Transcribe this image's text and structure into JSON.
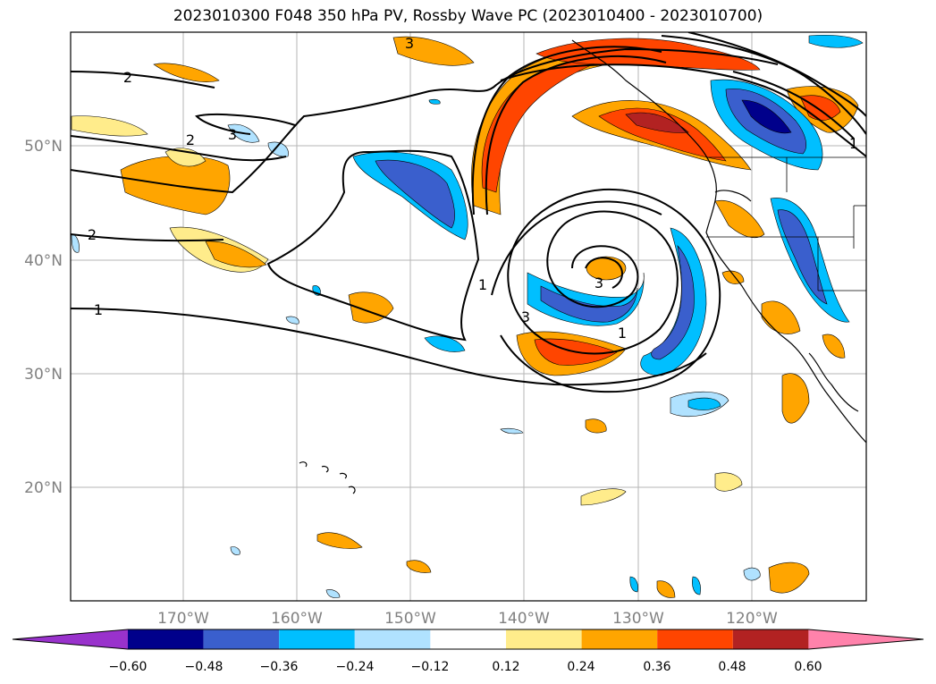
{
  "title": "2023010300 F048 350 hPa PV, Rossby Wave PC (2023010400 - 2023010700)",
  "map": {
    "lat_labels": [
      "50°N",
      "40°N",
      "30°N",
      "20°N"
    ],
    "lon_labels": [
      "170°W",
      "160°W",
      "150°W",
      "140°W",
      "130°W",
      "120°W"
    ],
    "contour_labels": [
      "2",
      "2",
      "2",
      "1",
      "3",
      "3",
      "3",
      "3",
      "1",
      "1",
      "1"
    ]
  },
  "colorbar": {
    "ticks": [
      "−0.60",
      "−0.48",
      "−0.36",
      "−0.24",
      "−0.12",
      "0.12",
      "0.24",
      "0.36",
      "0.48",
      "0.60"
    ],
    "colors": [
      "#9932cc",
      "#00008b",
      "#3a5fcd",
      "#00bfff",
      "#b0e2ff",
      "#ffffff",
      "#ffec8b",
      "#ffa500",
      "#ff4500",
      "#b22222",
      "#ff82ab"
    ]
  }
}
